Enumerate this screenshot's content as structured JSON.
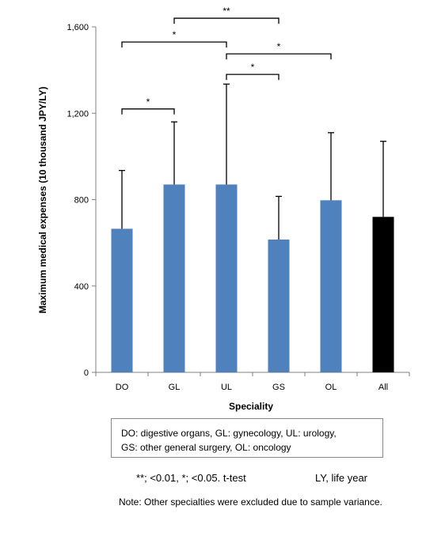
{
  "chart_data": {
    "type": "bar",
    "ylabel": "Maximum medical expenses (10 thousand JPY/LY)",
    "xlabel": "Speciality",
    "ylim": [
      0,
      1600
    ],
    "yticks": [
      0,
      400,
      800,
      1200,
      1600
    ],
    "ytick_labels": [
      "0",
      "400",
      "800",
      "1,200",
      "1,600"
    ],
    "categories": [
      "DO",
      "GL",
      "UL",
      "GS",
      "OL",
      "All"
    ],
    "values": [
      665,
      870,
      870,
      615,
      797,
      720
    ],
    "error_upper": [
      935,
      1160,
      1335,
      815,
      1110,
      1070
    ],
    "bar_colors": [
      "#4f81bd",
      "#4f81bd",
      "#4f81bd",
      "#4f81bd",
      "#4f81bd",
      "#000000"
    ],
    "significance": [
      {
        "from": "DO",
        "to": "GL",
        "label": "*",
        "level": 1220
      },
      {
        "from": "DO",
        "to": "UL",
        "label": "*",
        "level": 1530
      },
      {
        "from": "GL",
        "to": "GS",
        "label": "**",
        "level": 1640
      },
      {
        "from": "UL",
        "to": "GS",
        "label": "*",
        "level": 1380
      },
      {
        "from": "UL",
        "to": "OL",
        "label": "*",
        "level": 1475
      }
    ],
    "grid": false
  },
  "legend": {
    "line1": "DO: digestive organs, GL: gynecology, UL: urology,",
    "line2": "GS: other general surgery, OL: oncology"
  },
  "footnote_significance": "**; <0.01, *; <0.05. t-test",
  "footnote_ly": "LY, life year",
  "note": "Note: Other specialties  were excluded due to sample variance."
}
